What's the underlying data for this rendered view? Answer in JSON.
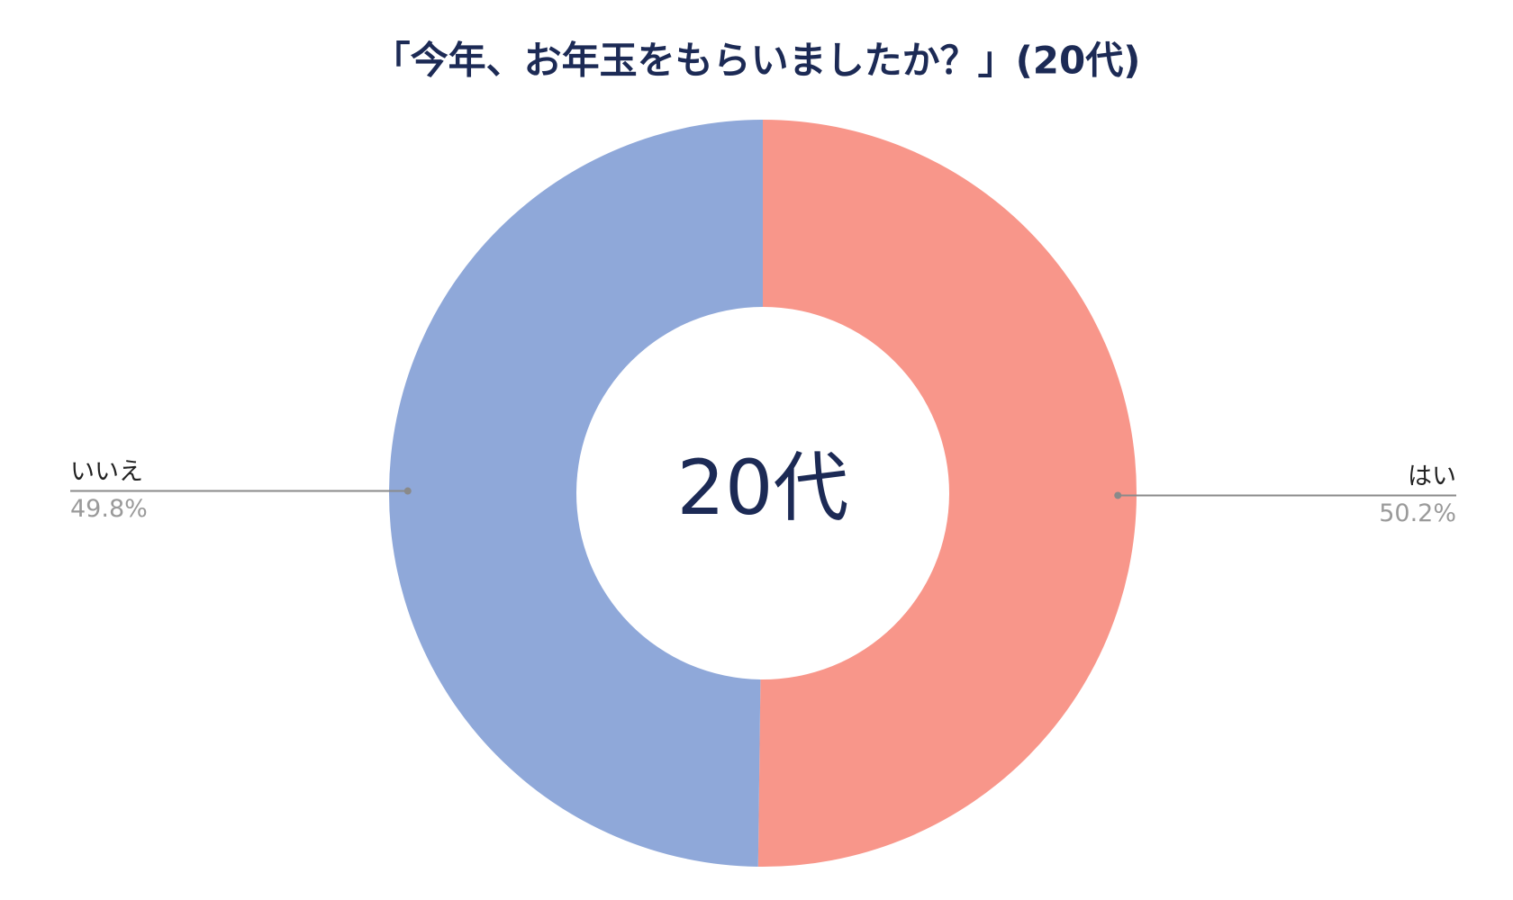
{
  "chart_data": {
    "type": "donut",
    "title": "「今年、お年玉をもらいましたか？」(20代)",
    "center_label": "20代",
    "categories": [
      "はい",
      "いいえ"
    ],
    "values": [
      50.2,
      49.8
    ],
    "value_labels": [
      "50.2%",
      "49.8%"
    ],
    "colors": [
      "#f8968a",
      "#8fa8d9"
    ]
  }
}
